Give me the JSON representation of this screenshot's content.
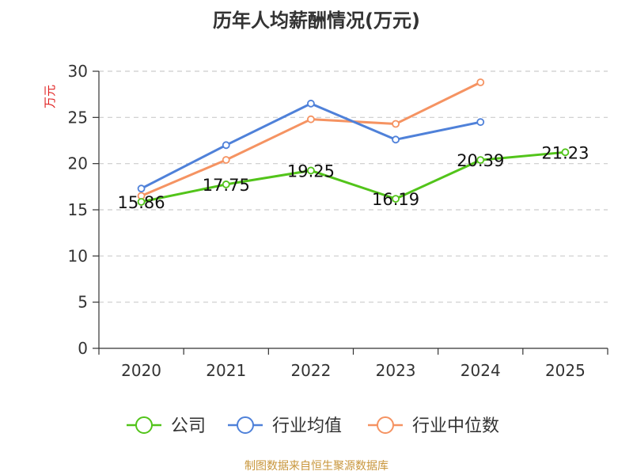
{
  "chart_data": {
    "type": "line",
    "title": "历年人均薪酬情况(万元)",
    "ylabel": "万元",
    "xlabel": "",
    "categories": [
      "2020",
      "2021",
      "2022",
      "2023",
      "2024",
      "2025"
    ],
    "ylim": [
      0,
      30
    ],
    "yticks": [
      0,
      5,
      10,
      15,
      20,
      25,
      30
    ],
    "grid": true,
    "legend_position": "bottom",
    "series": [
      {
        "name": "公司",
        "color": "#52c41a",
        "values": [
          15.86,
          17.75,
          19.25,
          16.19,
          20.39,
          21.23
        ],
        "labels": [
          "15.86",
          "17.75",
          "19.25",
          "16.19",
          "20.39",
          "21.23"
        ]
      },
      {
        "name": "行业均值",
        "color": "#4f81d9",
        "values": [
          17.3,
          22.0,
          26.5,
          22.6,
          24.5,
          null
        ]
      },
      {
        "name": "行业中位数",
        "color": "#f59362",
        "values": [
          16.5,
          20.4,
          24.8,
          24.3,
          28.8,
          null
        ]
      }
    ]
  },
  "footer": {
    "source_text": "制图数据来自恒生聚源数据库",
    "color": "#c8963c"
  },
  "colors": {
    "axis": "#333333",
    "grid": "#cccccc",
    "ylabel": "#e02020"
  }
}
